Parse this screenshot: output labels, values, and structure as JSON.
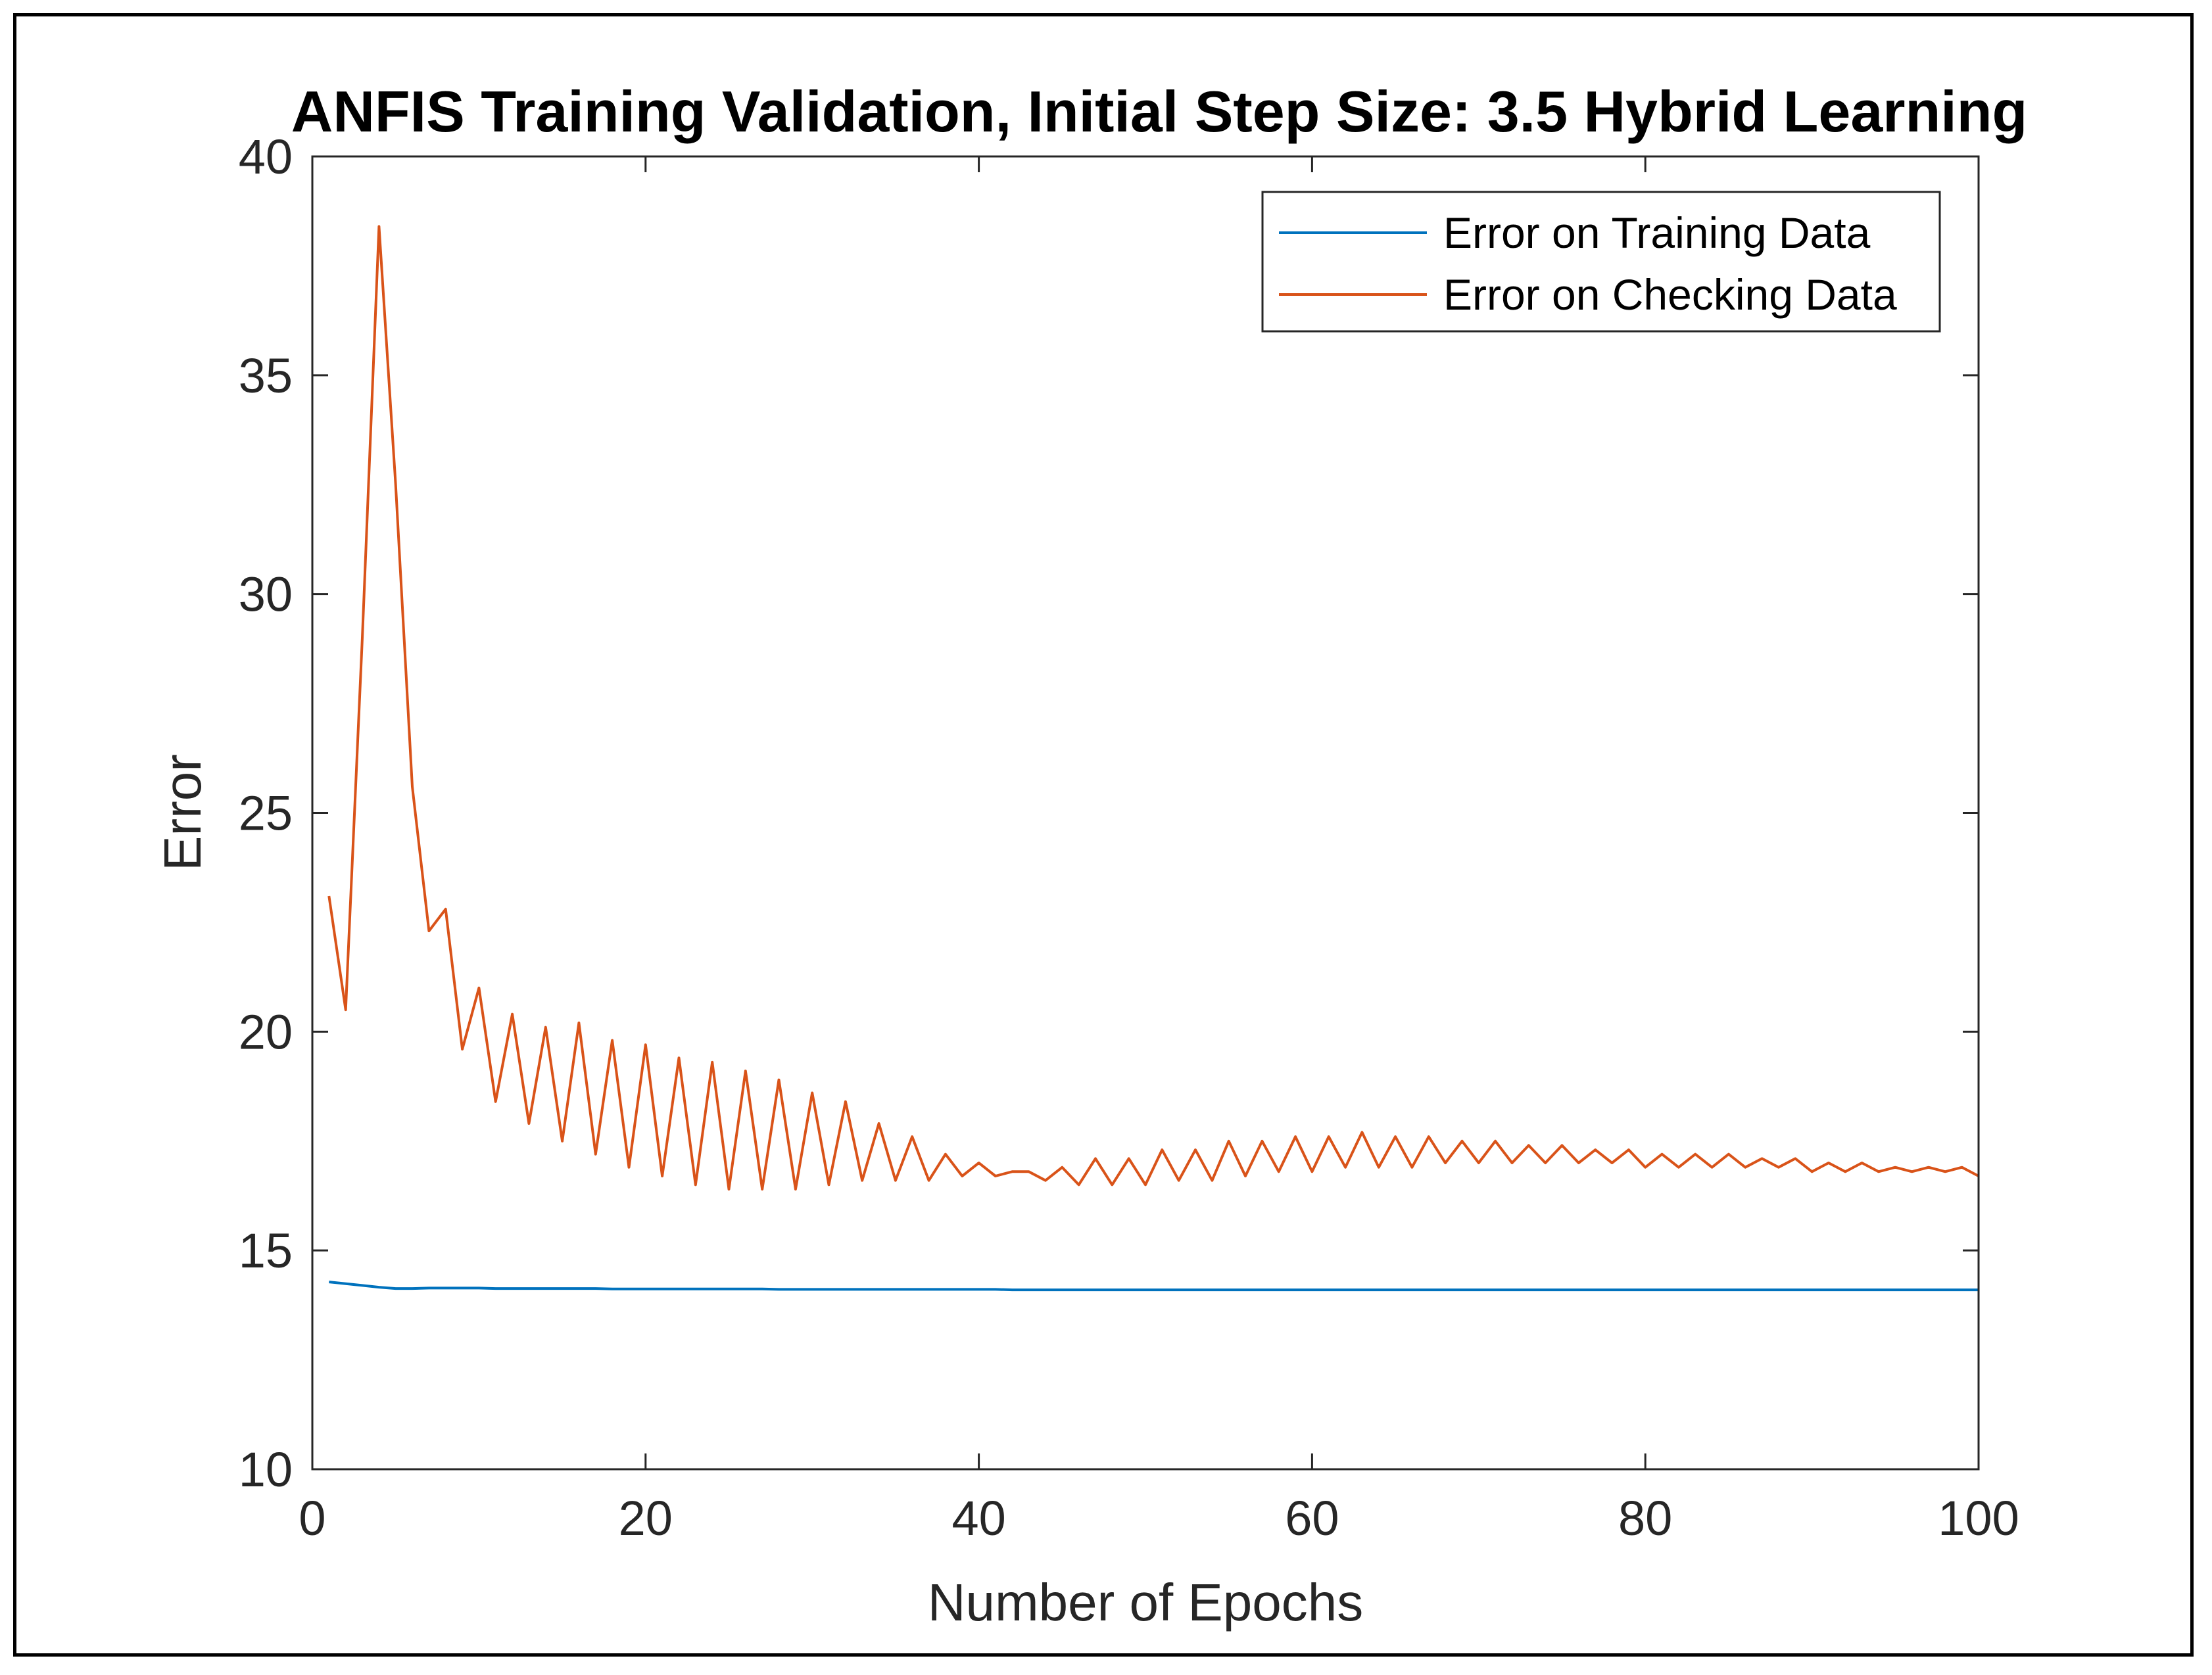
{
  "chart_data": {
    "type": "line",
    "title": "ANFIS Training Validation, Initial Step Size: 3.5 Hybrid Learning",
    "xlabel": "Number of Epochs",
    "ylabel": "Error",
    "xlim": [
      0,
      100
    ],
    "ylim": [
      10,
      40
    ],
    "xticks": [
      0,
      20,
      40,
      60,
      80,
      100
    ],
    "yticks": [
      10,
      15,
      20,
      25,
      30,
      35,
      40
    ],
    "xtick_labels": [
      "0",
      "20",
      "40",
      "60",
      "80",
      "100"
    ],
    "ytick_labels": [
      "10",
      "15",
      "20",
      "25",
      "30",
      "35",
      "40"
    ],
    "grid": false,
    "legend_position": "top-right",
    "series": [
      {
        "name": "Error on Training Data",
        "color": "#0072BD",
        "x": [
          1,
          2,
          3,
          4,
          5,
          6,
          7,
          8,
          9,
          10,
          11,
          12,
          13,
          14,
          15,
          16,
          17,
          18,
          19,
          20,
          21,
          22,
          23,
          24,
          25,
          26,
          27,
          28,
          29,
          30,
          31,
          32,
          33,
          34,
          35,
          36,
          37,
          38,
          39,
          40,
          41,
          42,
          43,
          44,
          45,
          46,
          47,
          48,
          49,
          50,
          51,
          52,
          53,
          54,
          55,
          56,
          57,
          58,
          59,
          60,
          61,
          62,
          63,
          64,
          65,
          66,
          67,
          68,
          69,
          70,
          71,
          72,
          73,
          74,
          75,
          76,
          77,
          78,
          79,
          80,
          81,
          82,
          83,
          84,
          85,
          86,
          87,
          88,
          89,
          90,
          91,
          92,
          93,
          94,
          95,
          96,
          97,
          98,
          99,
          100
        ],
        "y": [
          14.28,
          14.24,
          14.2,
          14.16,
          14.13,
          14.13,
          14.14,
          14.14,
          14.14,
          14.14,
          14.13,
          14.13,
          14.13,
          14.13,
          14.13,
          14.13,
          14.13,
          14.12,
          14.12,
          14.12,
          14.12,
          14.12,
          14.12,
          14.12,
          14.12,
          14.12,
          14.12,
          14.11,
          14.11,
          14.11,
          14.11,
          14.11,
          14.11,
          14.11,
          14.11,
          14.11,
          14.11,
          14.11,
          14.11,
          14.11,
          14.11,
          14.1,
          14.1,
          14.1,
          14.1,
          14.1,
          14.1,
          14.1,
          14.1,
          14.1,
          14.1,
          14.1,
          14.1,
          14.1,
          14.1,
          14.1,
          14.1,
          14.1,
          14.1,
          14.1,
          14.1,
          14.1,
          14.1,
          14.1,
          14.1,
          14.1,
          14.1,
          14.1,
          14.1,
          14.1,
          14.1,
          14.1,
          14.1,
          14.1,
          14.1,
          14.1,
          14.1,
          14.1,
          14.1,
          14.1,
          14.1,
          14.1,
          14.1,
          14.1,
          14.1,
          14.1,
          14.1,
          14.1,
          14.1,
          14.1,
          14.1,
          14.1,
          14.1,
          14.1,
          14.1,
          14.1,
          14.1,
          14.1,
          14.1,
          14.1
        ]
      },
      {
        "name": "Error on Checking Data",
        "color": "#D95319",
        "x": [
          1,
          2,
          3,
          4,
          5,
          6,
          7,
          8,
          9,
          10,
          11,
          12,
          13,
          14,
          15,
          16,
          17,
          18,
          19,
          20,
          21,
          22,
          23,
          24,
          25,
          26,
          27,
          28,
          29,
          30,
          31,
          32,
          33,
          34,
          35,
          36,
          37,
          38,
          39,
          40,
          41,
          42,
          43,
          44,
          45,
          46,
          47,
          48,
          49,
          50,
          51,
          52,
          53,
          54,
          55,
          56,
          57,
          58,
          59,
          60,
          61,
          62,
          63,
          64,
          65,
          66,
          67,
          68,
          69,
          70,
          71,
          72,
          73,
          74,
          75,
          76,
          77,
          78,
          79,
          80,
          81,
          82,
          83,
          84,
          85,
          86,
          87,
          88,
          89,
          90,
          91,
          92,
          93,
          94,
          95,
          96,
          97,
          98,
          99,
          100
        ],
        "y": [
          23.1,
          20.5,
          29.0,
          38.4,
          32.5,
          25.6,
          22.3,
          22.8,
          19.6,
          21.0,
          18.4,
          20.4,
          17.9,
          20.1,
          17.5,
          20.2,
          17.2,
          19.8,
          16.9,
          19.7,
          16.7,
          19.4,
          16.5,
          19.3,
          16.4,
          19.1,
          16.4,
          18.9,
          16.4,
          18.6,
          16.5,
          18.4,
          16.6,
          17.9,
          16.6,
          17.6,
          16.6,
          17.2,
          16.7,
          17.0,
          16.7,
          16.8,
          16.8,
          16.6,
          16.9,
          16.5,
          17.1,
          16.5,
          17.1,
          16.5,
          17.3,
          16.6,
          17.3,
          16.6,
          17.5,
          16.7,
          17.5,
          16.8,
          17.6,
          16.8,
          17.6,
          16.9,
          17.7,
          16.9,
          17.6,
          16.9,
          17.6,
          17.0,
          17.5,
          17.0,
          17.5,
          17.0,
          17.4,
          17.0,
          17.4,
          17.0,
          17.3,
          17.0,
          17.3,
          16.9,
          17.2,
          16.9,
          17.2,
          16.9,
          17.2,
          16.9,
          17.1,
          16.9,
          17.1,
          16.8,
          17.0,
          16.8,
          17.0,
          16.8,
          16.9,
          16.8,
          16.9,
          16.8,
          16.9,
          16.7
        ]
      }
    ]
  }
}
